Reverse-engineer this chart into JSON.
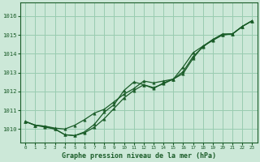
{
  "background_color": "#cce8d8",
  "grid_color": "#99ccb0",
  "line_color": "#1a5c28",
  "title": "Graphe pression niveau de la mer (hPa)",
  "xlim": [
    -0.5,
    23.5
  ],
  "ylim": [
    1009.3,
    1016.7
  ],
  "yticks": [
    1010,
    1011,
    1012,
    1013,
    1014,
    1015,
    1016
  ],
  "xticks": [
    0,
    1,
    2,
    3,
    4,
    5,
    6,
    7,
    8,
    9,
    10,
    11,
    12,
    13,
    14,
    15,
    16,
    17,
    18,
    19,
    20,
    21,
    22,
    23
  ],
  "x": [
    0,
    1,
    2,
    3,
    4,
    5,
    6,
    7,
    8,
    9,
    10,
    11,
    12,
    13,
    14,
    15,
    16,
    17,
    18,
    19,
    20,
    21,
    22,
    23
  ],
  "line1": [
    1010.4,
    1010.2,
    1010.15,
    1010.05,
    1010.0,
    1010.2,
    1010.5,
    1010.85,
    1011.05,
    1011.45,
    1011.85,
    1012.15,
    1012.55,
    1012.45,
    1012.55,
    1012.65,
    1013.05,
    1013.85,
    1014.35,
    1014.75,
    1015.05,
    1015.05,
    1015.45,
    1015.75
  ],
  "line2": [
    1010.4,
    1010.2,
    1010.15,
    1010.0,
    1009.7,
    1009.65,
    1009.8,
    1010.1,
    1010.55,
    1011.1,
    1011.65,
    1012.05,
    1012.35,
    1012.15,
    1012.45,
    1012.65,
    1012.95,
    1013.75,
    1014.4,
    1014.75,
    1015.0,
    1015.05,
    1015.45,
    1015.75
  ],
  "line3": [
    1010.4,
    1010.2,
    1010.1,
    1010.0,
    1009.7,
    1009.65,
    1009.85,
    1010.25,
    1010.9,
    1011.3,
    1012.05,
    1012.5,
    1012.35,
    1012.2,
    1012.4,
    1012.65,
    1013.3,
    1014.05,
    1014.4,
    1014.7,
    1015.0,
    1015.05,
    1015.45,
    1015.75
  ]
}
